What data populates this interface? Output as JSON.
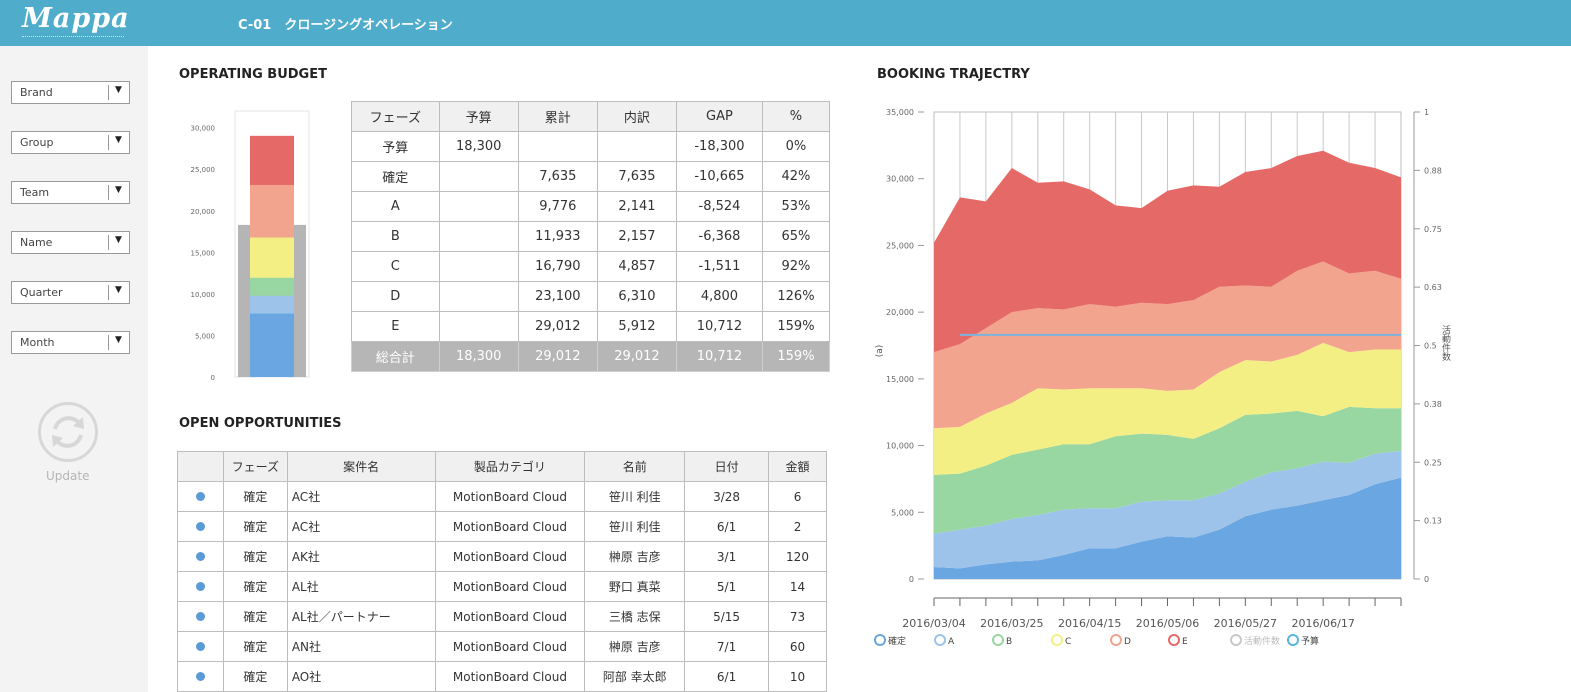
{
  "header": {
    "logo": "Mappa",
    "title": "C-01　クロージングオペレーション"
  },
  "sidebar": {
    "filters": [
      "Brand",
      "Group",
      "Team",
      "Name",
      "Quarter",
      "Month"
    ],
    "update_label": "Update"
  },
  "budget": {
    "title": "OPERATING BUDGET",
    "columns": [
      "フェーズ",
      "予算",
      "累計",
      "内訳",
      "GAP",
      "%"
    ],
    "rows": [
      [
        "予算",
        "18,300",
        "",
        "",
        "-18,300",
        "0%"
      ],
      [
        "確定",
        "",
        "7,635",
        "7,635",
        "-10,665",
        "42%"
      ],
      [
        "A",
        "",
        "9,776",
        "2,141",
        "-8,524",
        "53%"
      ],
      [
        "B",
        "",
        "11,933",
        "2,157",
        "-6,368",
        "65%"
      ],
      [
        "C",
        "",
        "16,790",
        "4,857",
        "-1,511",
        "92%"
      ],
      [
        "D",
        "",
        "23,100",
        "6,310",
        "4,800",
        "126%"
      ],
      [
        "E",
        "",
        "29,012",
        "5,912",
        "10,712",
        "159%"
      ]
    ],
    "total_row": [
      "総合計",
      "18,300",
      "29,012",
      "29,012",
      "10,712",
      "159%"
    ]
  },
  "opportunities": {
    "title": "OPEN OPPORTUNITIES",
    "columns": [
      "",
      "フェーズ",
      "案件名",
      "製品カテゴリ",
      "名前",
      "日付",
      "金額"
    ],
    "rows": [
      [
        "確定",
        "AC社",
        "MotionBoard Cloud",
        "笹川 利佳",
        "3/28",
        "6"
      ],
      [
        "確定",
        "AC社",
        "MotionBoard Cloud",
        "笹川 利佳",
        "6/1",
        "2"
      ],
      [
        "確定",
        "AK社",
        "MotionBoard Cloud",
        "榊原 吉彦",
        "3/1",
        "120"
      ],
      [
        "確定",
        "AL社",
        "MotionBoard Cloud",
        "野口 真菜",
        "5/1",
        "14"
      ],
      [
        "確定",
        "AL社／パートナー",
        "MotionBoard Cloud",
        "三橋 志保",
        "5/15",
        "73"
      ],
      [
        "確定",
        "AN社",
        "MotionBoard Cloud",
        "榊原 吉彦",
        "7/1",
        "60"
      ],
      [
        "確定",
        "AO社",
        "MotionBoard Cloud",
        "阿部 幸太郎",
        "6/1",
        "10"
      ]
    ]
  },
  "colors": {
    "header": "#4faccb",
    "確定": "#6aa6e2",
    "A": "#9dc3ea",
    "B": "#98d6a2",
    "C": "#f4ef84",
    "D": "#f3a48e",
    "E": "#e56a67",
    "budget_gray": "#b5b5b5",
    "budget_line": "#7bb3dd"
  },
  "icons": {
    "dropdown": "triangle-down-icon",
    "update": "refresh-icon",
    "status": "dot-icon"
  },
  "chart_data": [
    {
      "type": "bar",
      "stacked": true,
      "yticks": [
        "0",
        "5,000",
        "10,000",
        "15,000",
        "20,000",
        "25,000",
        "30,000"
      ],
      "ylim": [
        0,
        32000
      ],
      "series": [
        {
          "name": "確定",
          "values": [
            7635
          ]
        },
        {
          "name": "A",
          "values": [
            2141
          ]
        },
        {
          "name": "B",
          "values": [
            2157
          ]
        },
        {
          "name": "C",
          "values": [
            4857
          ]
        },
        {
          "name": "D",
          "values": [
            6310
          ]
        },
        {
          "name": "E",
          "values": [
            5912
          ]
        }
      ],
      "budget_value": 18300
    },
    {
      "type": "area",
      "title": "BOOKING TRAJECTRY",
      "stacked": true,
      "ylabel": "(a)",
      "y2label": "活動件数",
      "ylim": [
        0,
        35000
      ],
      "y2lim": [
        0,
        1
      ],
      "yticks": [
        "0",
        "5,000",
        "10,000",
        "15,000",
        "20,000",
        "25,000",
        "30,000",
        "35,000"
      ],
      "y2ticks": [
        "0",
        "0.13",
        "0.25",
        "0.38",
        "0.5",
        "0.63",
        "0.75",
        "0.88",
        "1"
      ],
      "xticks": [
        "2016/03/04",
        "2016/03/25",
        "2016/04/15",
        "2016/05/06",
        "2016/05/27",
        "2016/06/17"
      ],
      "series": [
        {
          "name": "確定",
          "values": [
            900,
            800,
            1100,
            1300,
            1400,
            1800,
            2300,
            2300,
            2800,
            3200,
            3100,
            3700,
            4700,
            5200,
            5500,
            5900,
            6300,
            7100,
            7600
          ]
        },
        {
          "name": "A",
          "values": [
            2500,
            2900,
            2900,
            3200,
            3400,
            3400,
            3000,
            3000,
            3000,
            2700,
            2800,
            2700,
            2600,
            2800,
            2800,
            2900,
            2400,
            2300,
            2000
          ]
        },
        {
          "name": "B",
          "values": [
            4400,
            4200,
            4500,
            4800,
            4900,
            4900,
            4800,
            5400,
            5100,
            4900,
            4600,
            4900,
            5000,
            4400,
            4300,
            3400,
            4200,
            3400,
            3200
          ]
        },
        {
          "name": "C",
          "values": [
            3500,
            3500,
            3900,
            3900,
            4600,
            4100,
            4200,
            3600,
            3400,
            3300,
            3700,
            4200,
            4100,
            3900,
            4200,
            5500,
            4100,
            4400,
            4400
          ]
        },
        {
          "name": "D",
          "values": [
            5700,
            6200,
            6400,
            6800,
            6000,
            6000,
            6300,
            6100,
            6400,
            6500,
            6700,
            6400,
            5600,
            5600,
            6300,
            6100,
            5900,
            5900,
            5300
          ]
        },
        {
          "name": "E",
          "values": [
            8200,
            11000,
            9500,
            10800,
            9400,
            9600,
            8600,
            7600,
            7100,
            8500,
            8600,
            7500,
            8500,
            8900,
            8600,
            8300,
            8300,
            7700,
            7600
          ]
        },
        {
          "name": "活動件数",
          "values": []
        },
        {
          "name": "予算",
          "values": [
            18300,
            18300,
            18300,
            18300,
            18300,
            18300,
            18300,
            18300,
            18300,
            18300,
            18300,
            18300,
            18300,
            18300,
            18300,
            18300,
            18300,
            18300,
            18300
          ]
        }
      ],
      "legend": [
        "確定",
        "A",
        "B",
        "C",
        "D",
        "E",
        "活動件数",
        "予算"
      ]
    }
  ]
}
